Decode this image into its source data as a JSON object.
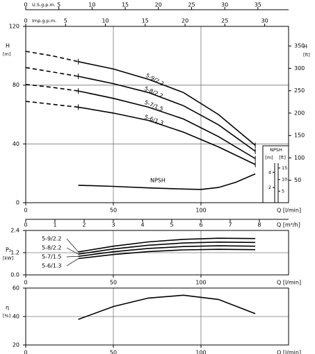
{
  "chart_data": [
    {
      "type": "line",
      "x": [
        0,
        15,
        30,
        50,
        70,
        90,
        110,
        131
      ],
      "xlim": [
        0,
        150
      ],
      "xticks": [
        0,
        50,
        100
      ],
      "x_label": "Q [l/min]",
      "solid_from": 30,
      "ylabel": "H",
      "yunit": "[m]",
      "ylim": [
        0,
        120
      ],
      "yticks": [
        0,
        40,
        80,
        120
      ],
      "y2label": "H",
      "y2unit": "[ft]",
      "y2lim": [
        0,
        393.7
      ],
      "y2ticks": [
        50,
        100,
        150,
        200,
        250,
        300,
        350
      ],
      "grid": true,
      "series": [
        {
          "name": "5-9/2.2",
          "color": "#000000",
          "values": [
            103,
            100,
            96,
            91,
            84,
            75,
            60,
            39
          ]
        },
        {
          "name": "5-8/2.2",
          "color": "#000000",
          "values": [
            92,
            89,
            86,
            81,
            75,
            66,
            53,
            35
          ]
        },
        {
          "name": "5-7/1.5",
          "color": "#000000",
          "values": [
            80.5,
            78.5,
            76,
            71,
            65,
            57,
            45,
            30
          ]
        },
        {
          "name": "5-6/1.3",
          "color": "#000000",
          "values": [
            69,
            67,
            65,
            61,
            56,
            48,
            38,
            26
          ]
        }
      ],
      "npsh": {
        "name": "NPSH",
        "title": "NPSH",
        "color": "#000000",
        "x": [
          30,
          50,
          70,
          90,
          100,
          110,
          120,
          131
        ],
        "values": [
          2.3,
          2.15,
          1.95,
          1.8,
          1.75,
          2.0,
          2.7,
          3.8
        ],
        "ylim": [
          0,
          7.5
        ],
        "yticks": [
          2,
          4
        ],
        "yunit": "[m]",
        "y2lim": [
          0,
          24.6
        ],
        "y2ticks": [
          5,
          10,
          15
        ],
        "y2unit": "[ft]"
      },
      "flow_axes": [
        {
          "label": "U.S.g.p.m.",
          "lim": [
            0,
            39.63
          ],
          "ticks": [
            0,
            5,
            10,
            15,
            20,
            25,
            30,
            35
          ]
        },
        {
          "label": "Imp.g.p.m.",
          "lim": [
            0,
            33.0
          ],
          "ticks": [
            0,
            5,
            10,
            15,
            20,
            25,
            30
          ]
        },
        {
          "label": "Q [m³/h]",
          "lim": [
            0,
            9
          ],
          "ticks": [
            0,
            1,
            2,
            3,
            4,
            5,
            6,
            7,
            8
          ]
        }
      ]
    },
    {
      "type": "line",
      "x": [
        30,
        50,
        70,
        90,
        110,
        131
      ],
      "xlim": [
        0,
        150
      ],
      "xticks": [
        0,
        50,
        100
      ],
      "x_label": "Q [l/min]",
      "ylabel": "P₂",
      "yunit": "[kW]",
      "ylim": [
        0,
        2.4
      ],
      "yticks": [
        {
          "value": 0,
          "label": "0.0"
        },
        1.2,
        2.4
      ],
      "grid": true,
      "series": [
        {
          "name": "5-9/2.2",
          "color": "#000000",
          "values": [
            1.24,
            1.55,
            1.78,
            1.92,
            1.98,
            1.96
          ]
        },
        {
          "name": "5-8/2.2",
          "color": "#000000",
          "values": [
            1.12,
            1.4,
            1.6,
            1.72,
            1.77,
            1.75
          ]
        },
        {
          "name": "5-7/1.5",
          "color": "#000000",
          "values": [
            1.0,
            1.25,
            1.43,
            1.53,
            1.57,
            1.55
          ]
        },
        {
          "name": "5-6/1.3",
          "color": "#000000",
          "values": [
            0.88,
            1.1,
            1.26,
            1.35,
            1.38,
            1.36
          ]
        }
      ]
    },
    {
      "type": "line",
      "x": [
        30,
        50,
        70,
        90,
        110,
        131
      ],
      "xlim": [
        0,
        150
      ],
      "xticks": [
        0,
        50,
        100
      ],
      "x_label": "Q [l/min]",
      "ylabel": "η",
      "yunit": "[%]",
      "ylim": [
        20,
        60
      ],
      "yticks": [
        20,
        40,
        60
      ],
      "grid": true,
      "series": [
        {
          "name": "η",
          "color": "#000000",
          "values": [
            38,
            47,
            53,
            55,
            52,
            42
          ]
        }
      ]
    }
  ]
}
